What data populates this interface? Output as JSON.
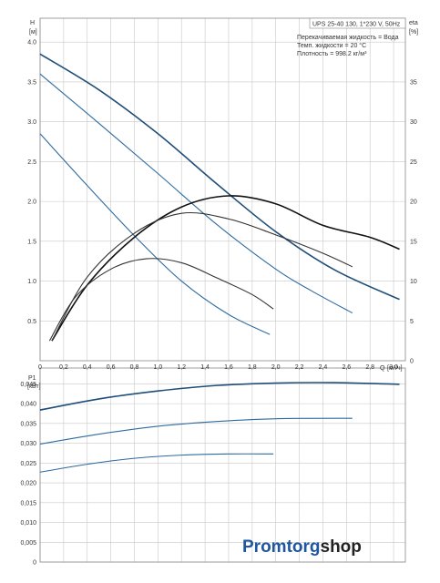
{
  "chart_data": [
    {
      "type": "line",
      "title": "UPS 25-40 130, 1*230 V, 50Hz",
      "info_lines": [
        "Перекачиваемая жидкость = Вода",
        "Темп. жидкости = 20 °C",
        "Плотность = 998.2 кг/м³"
      ],
      "ylabel": "H",
      "yunit": "[м]",
      "y2label": "eta",
      "y2unit": "[%]",
      "xlabel": "Q",
      "xunit": "[м³/ч]",
      "xlim": [
        0,
        3.1
      ],
      "ylim": [
        0,
        4.3
      ],
      "y2lim": [
        0,
        43
      ],
      "xticks": [
        "0",
        "0,2",
        "0,4",
        "0,6",
        "0,8",
        "1,0",
        "1,2",
        "1,4",
        "1,6",
        "1,8",
        "2,0",
        "2,2",
        "2,4",
        "2,6",
        "2,8",
        "3,0"
      ],
      "yticks": [
        "0.5",
        "1.0",
        "1.5",
        "2.0",
        "2.5",
        "3.0",
        "3.5",
        "4.0"
      ],
      "y2ticks": [
        "0",
        "5",
        "10",
        "15",
        "20",
        "25",
        "30",
        "35"
      ],
      "grid": true,
      "series": [
        {
          "axis": "H",
          "color": "#1f4e79",
          "x": [
            0,
            0.5,
            1.0,
            1.5,
            2.0,
            2.5,
            3.05
          ],
          "y": [
            3.85,
            3.4,
            2.85,
            2.22,
            1.62,
            1.14,
            0.77
          ]
        },
        {
          "axis": "H",
          "color": "#2e6aa0",
          "x": [
            0,
            0.5,
            1.0,
            1.5,
            2.0,
            2.3,
            2.65
          ],
          "y": [
            3.6,
            2.98,
            2.35,
            1.71,
            1.15,
            0.88,
            0.6
          ]
        },
        {
          "axis": "H",
          "color": "#2e6aa0",
          "x": [
            0,
            0.4,
            0.8,
            1.2,
            1.6,
            1.95
          ],
          "y": [
            2.85,
            2.2,
            1.57,
            1.0,
            0.58,
            0.33
          ]
        },
        {
          "axis": "eta",
          "color": "#111111",
          "x": [
            0.1,
            0.4,
            0.8,
            1.2,
            1.6,
            2.0,
            2.4,
            2.8,
            3.05
          ],
          "y": [
            2.5,
            9.5,
            15.5,
            19.3,
            20.7,
            19.7,
            17.0,
            15.5,
            14.0
          ]
        },
        {
          "axis": "eta",
          "color": "#333333",
          "x": [
            0.1,
            0.4,
            0.8,
            1.2,
            1.6,
            2.0,
            2.4,
            2.65
          ],
          "y": [
            2.5,
            10.5,
            16.0,
            18.5,
            17.8,
            15.8,
            13.5,
            11.8
          ]
        },
        {
          "axis": "eta",
          "color": "#333333",
          "x": [
            0.08,
            0.3,
            0.6,
            0.9,
            1.2,
            1.5,
            1.8,
            1.98
          ],
          "y": [
            2.5,
            8.0,
            11.5,
            12.8,
            12.3,
            10.4,
            8.3,
            6.5
          ]
        }
      ]
    },
    {
      "type": "line",
      "ylabel": "P1",
      "yunit": "[кВт]",
      "xlim": [
        0,
        3.1
      ],
      "ylim": [
        0,
        0.049
      ],
      "yticks": [
        "0",
        "0,005",
        "0,010",
        "0,015",
        "0,020",
        "0,025",
        "0,030",
        "0,035",
        "0,040",
        "0,045"
      ],
      "grid": true,
      "series": [
        {
          "color": "#1f4e79",
          "x": [
            0,
            0.5,
            1.0,
            1.5,
            2.0,
            2.5,
            3.05
          ],
          "y": [
            0.0384,
            0.0412,
            0.0432,
            0.0446,
            0.0452,
            0.0453,
            0.0449
          ]
        },
        {
          "color": "#2e6aa0",
          "x": [
            0,
            0.5,
            1.0,
            1.5,
            2.0,
            2.65
          ],
          "y": [
            0.0298,
            0.0323,
            0.0343,
            0.0355,
            0.0362,
            0.0363
          ]
        },
        {
          "color": "#2e6aa0",
          "x": [
            0,
            0.4,
            0.8,
            1.2,
            1.6,
            1.98
          ],
          "y": [
            0.0227,
            0.0247,
            0.0262,
            0.027,
            0.0273,
            0.0273
          ]
        }
      ]
    }
  ],
  "brand": {
    "part1": "Promtorg",
    "part2": "shop"
  }
}
